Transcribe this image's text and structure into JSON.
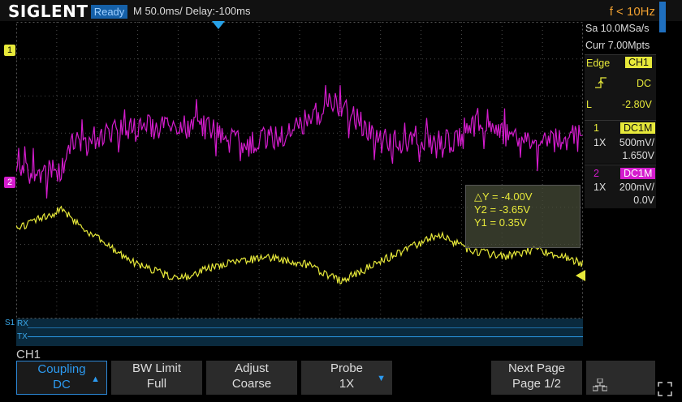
{
  "header": {
    "brand": "SIGLENT",
    "status": "Ready",
    "timebase": "M 50.0ms/ Delay:-100ms",
    "frequency": "f < 10Hz"
  },
  "right_panel": {
    "sample_rate": "Sa 10.0MSa/s",
    "memory_depth": "Curr 7.00Mpts",
    "trigger": {
      "type_label": "Edge",
      "source": "CH1",
      "coupling": "DC",
      "level_label": "L",
      "level": "-2.80V"
    },
    "channel1": {
      "number": "1",
      "coupling": "DC1M",
      "probe": "1X",
      "scale": "500mV/",
      "offset": "1.650V",
      "color": "#e7e93a"
    },
    "channel2": {
      "number": "2",
      "coupling": "DC1M",
      "probe": "1X",
      "scale": "200mV/",
      "offset": "0.0V",
      "color": "#d41ccd"
    }
  },
  "markers": {
    "ch1": "1",
    "ch2": "2",
    "serial": "S1",
    "rx": "RX",
    "tx": "TX"
  },
  "cursor": {
    "delta_y": "△Y = -4.00V",
    "y2": "Y2 = -3.65V",
    "y1": "Y1 = 0.35V"
  },
  "bottom": {
    "channel_label": "CH1",
    "softkeys": [
      {
        "line1": "Coupling",
        "line2": "DC"
      },
      {
        "line1": "BW Limit",
        "line2": "Full"
      },
      {
        "line1": "Adjust",
        "line2": "Coarse"
      },
      {
        "line1": "Probe",
        "line2": "1X"
      },
      {
        "line1": "Next Page",
        "line2": "Page 1/2"
      }
    ]
  }
}
